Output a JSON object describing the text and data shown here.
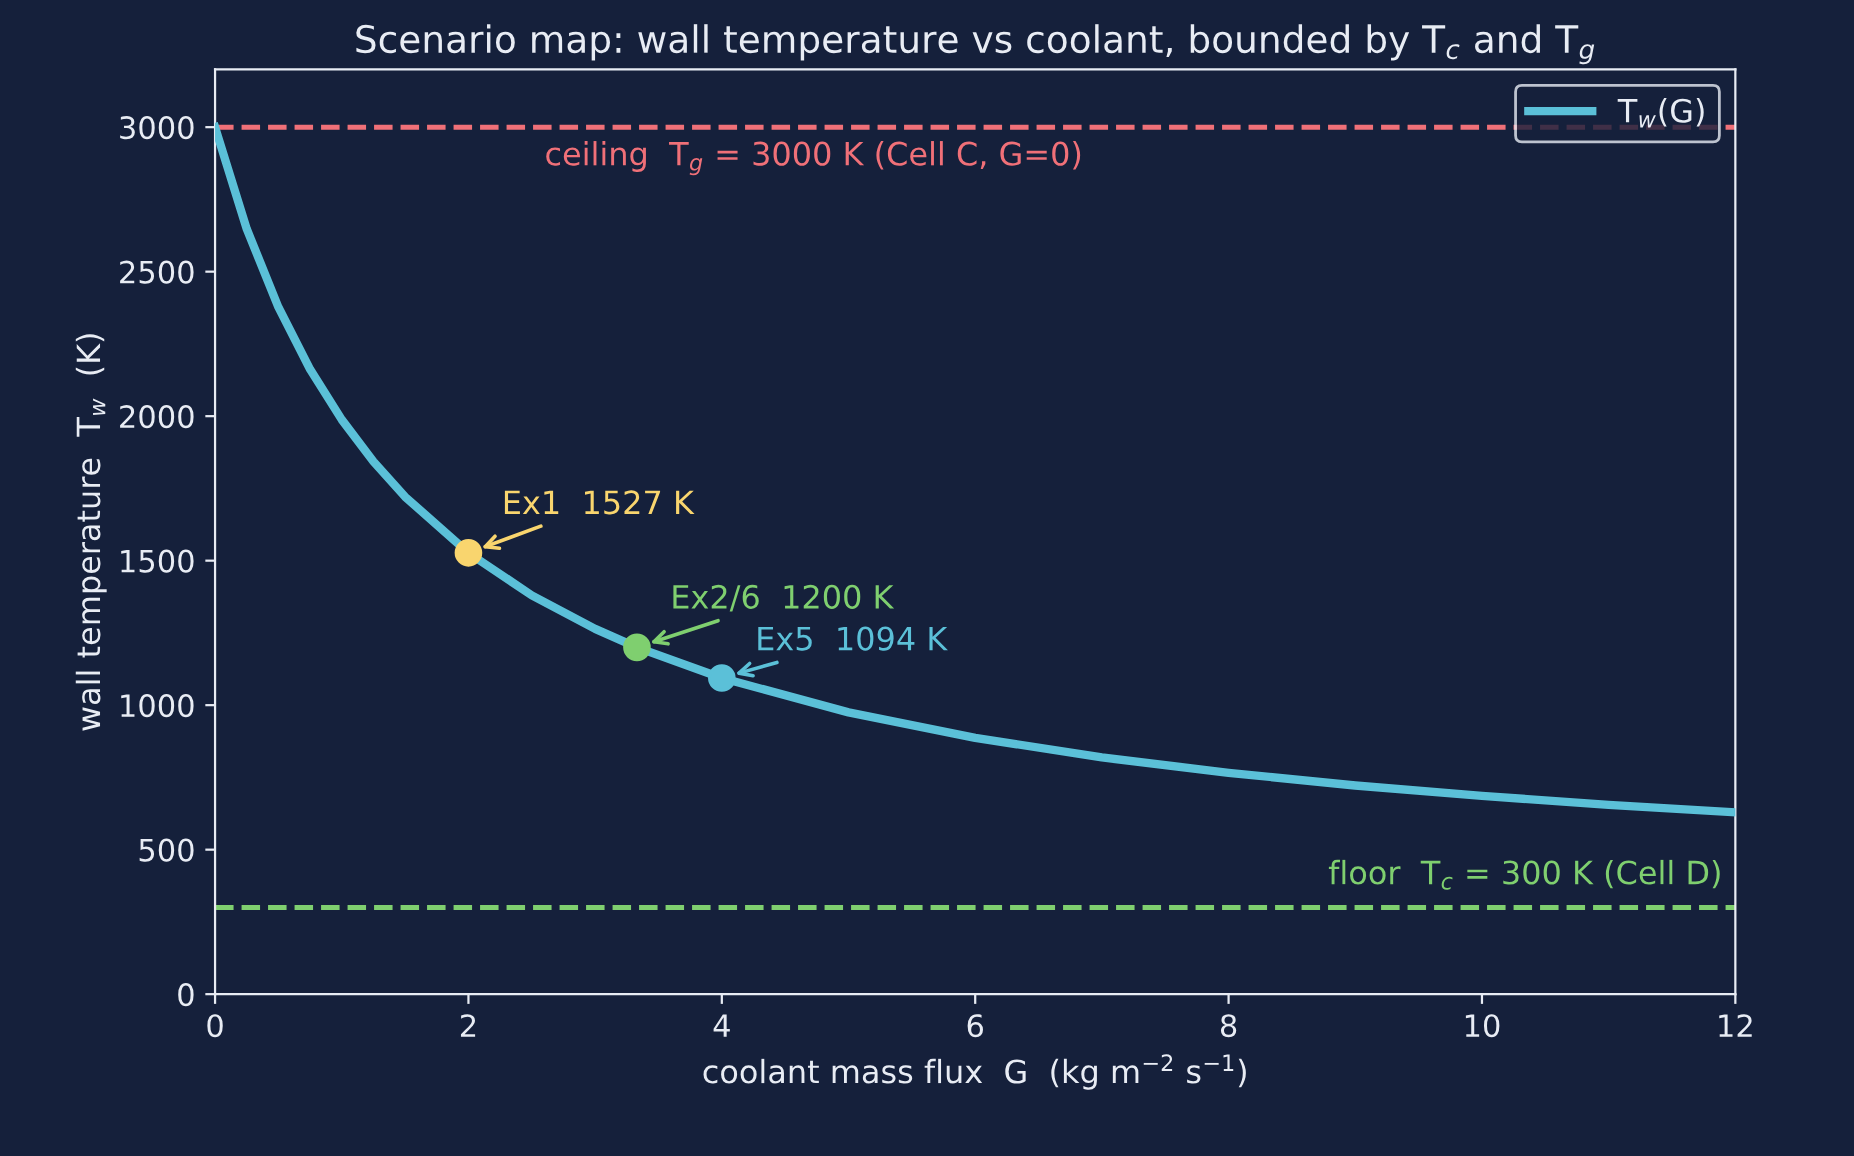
{
  "chart_data": {
    "type": "line",
    "title": "Scenario map: wall temperature vs coolant, bounded by T$_{c}$ and T$_{g}$",
    "xlabel": "coolant mass flux  G  (kg m$^{−2}$ s$^{−1}$)",
    "ylabel": "wall temperature  T$_{w}$  (K)",
    "xlim": [
      0,
      12
    ],
    "xticks": [
      0,
      2,
      4,
      6,
      8,
      10,
      12
    ],
    "ylim": [
      0,
      3200
    ],
    "yticks": [
      0,
      500,
      1000,
      1500,
      2000,
      2500,
      3000
    ],
    "grid": false,
    "legend": "top right",
    "series": [
      {
        "name": "T$_{w}$(G)",
        "color": "#5bc0d8",
        "marker": "none",
        "line_style": "solid",
        "x": [
          0,
          0.25,
          0.5,
          0.75,
          1,
          1.25,
          1.5,
          2,
          2.5,
          3,
          3.33,
          4,
          5,
          6,
          7,
          8,
          9,
          10,
          11,
          12
        ],
        "values": [
          3000,
          2648,
          2377,
          2162,
          1988,
          1843,
          1721,
          1527,
          1380,
          1264,
          1200,
          1094,
          975,
          887,
          819,
          766,
          722,
          686,
          655,
          629
        ]
      },
      {
        "type": "scatter",
        "marker": "circle",
        "colors": [
          "#f9d56e",
          "#7fcf6f",
          "#5bc0d8"
        ],
        "x": [
          2,
          3.33,
          4
        ],
        "values": [
          1527,
          1200,
          1094
        ]
      }
    ],
    "annotations": [
      {
        "text": "Ex1  1527 K",
        "x": 2,
        "y": 1527
      },
      {
        "text": "Ex2/6  1200 K",
        "x": 3.33,
        "y": 1200
      },
      {
        "text": "Ex5  1094 K",
        "x": 4,
        "y": 1094
      }
    ],
    "ref_lines": [
      {
        "axis": "y",
        "value": 3000,
        "label": "ceiling  T$_{g}$ = 3000 K (Cell C, G=0)",
        "color": "#f07078",
        "line_style": "dashed"
      },
      {
        "axis": "y",
        "value": 300,
        "label": "floor  T$_{c}$ = 300 K (Cell D)",
        "color": "#7fcf6f",
        "line_style": "dashed"
      }
    ]
  }
}
